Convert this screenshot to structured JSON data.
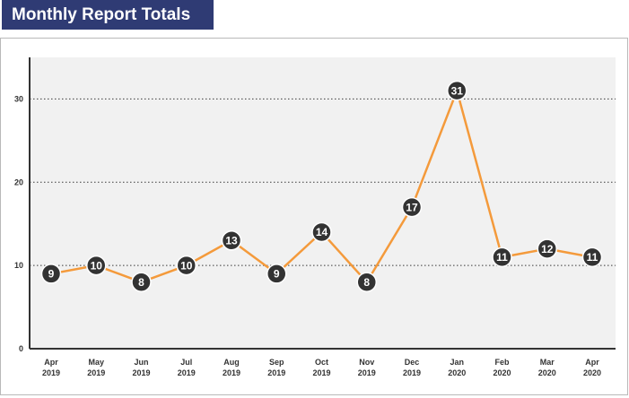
{
  "header": {
    "title": "Monthly Report Totals"
  },
  "colors": {
    "title_bg": "#2f3b74",
    "plot_bg": "#f1f1f1",
    "line": "#f49a3b",
    "marker": "#333333",
    "marker_border": "#ffffff"
  },
  "chart_data": {
    "type": "line",
    "title": "Monthly Report Totals",
    "categories": [
      [
        "Apr",
        "2019"
      ],
      [
        "May",
        "2019"
      ],
      [
        "Jun",
        "2019"
      ],
      [
        "Jul",
        "2019"
      ],
      [
        "Aug",
        "2019"
      ],
      [
        "Sep",
        "2019"
      ],
      [
        "Oct",
        "2019"
      ],
      [
        "Nov",
        "2019"
      ],
      [
        "Dec",
        "2019"
      ],
      [
        "Jan",
        "2020"
      ],
      [
        "Feb",
        "2020"
      ],
      [
        "Mar",
        "2020"
      ],
      [
        "Apr",
        "2020"
      ]
    ],
    "values": [
      9,
      10,
      8,
      10,
      13,
      9,
      14,
      8,
      17,
      31,
      11,
      12,
      11
    ],
    "ylim": [
      0,
      35
    ],
    "yticks": [
      0,
      10,
      20,
      30
    ],
    "grid": "horizontal dotted",
    "legend": "none"
  }
}
